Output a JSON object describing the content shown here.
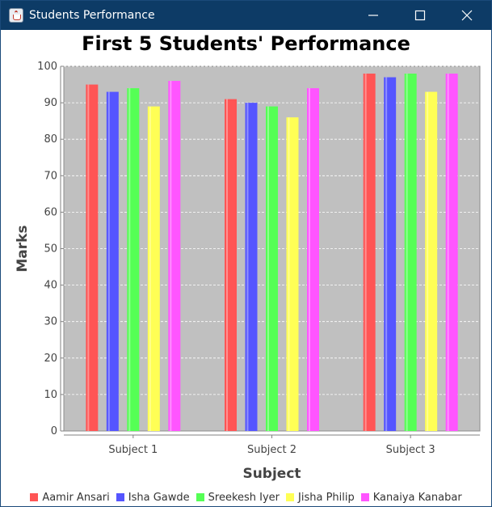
{
  "window": {
    "title": "Students Performance",
    "icon": "java-cup-icon"
  },
  "chart_data": {
    "type": "bar",
    "title": "First 5 Students' Performance",
    "xlabel": "Subject",
    "ylabel": "Marks",
    "categories": [
      "Subject 1",
      "Subject 2",
      "Subject 3"
    ],
    "ylim": [
      0,
      100
    ],
    "yticks": [
      0,
      10,
      20,
      30,
      40,
      50,
      60,
      70,
      80,
      90,
      100
    ],
    "grid": true,
    "legend_position": "bottom",
    "plot_background": "#c0c0c0",
    "series": [
      {
        "name": "Aamir Ansari",
        "color": "#ff5555",
        "values": [
          95,
          91,
          98
        ]
      },
      {
        "name": "Isha Gawde",
        "color": "#5555ff",
        "values": [
          93,
          90,
          97
        ]
      },
      {
        "name": "Sreekesh Iyer",
        "color": "#55ff55",
        "values": [
          94,
          89,
          98
        ]
      },
      {
        "name": "Jisha Philip",
        "color": "#ffff55",
        "values": [
          89,
          86,
          93
        ]
      },
      {
        "name": "Kanaiya Kanabar",
        "color": "#ff55ff",
        "values": [
          96,
          94,
          98
        ]
      }
    ]
  }
}
